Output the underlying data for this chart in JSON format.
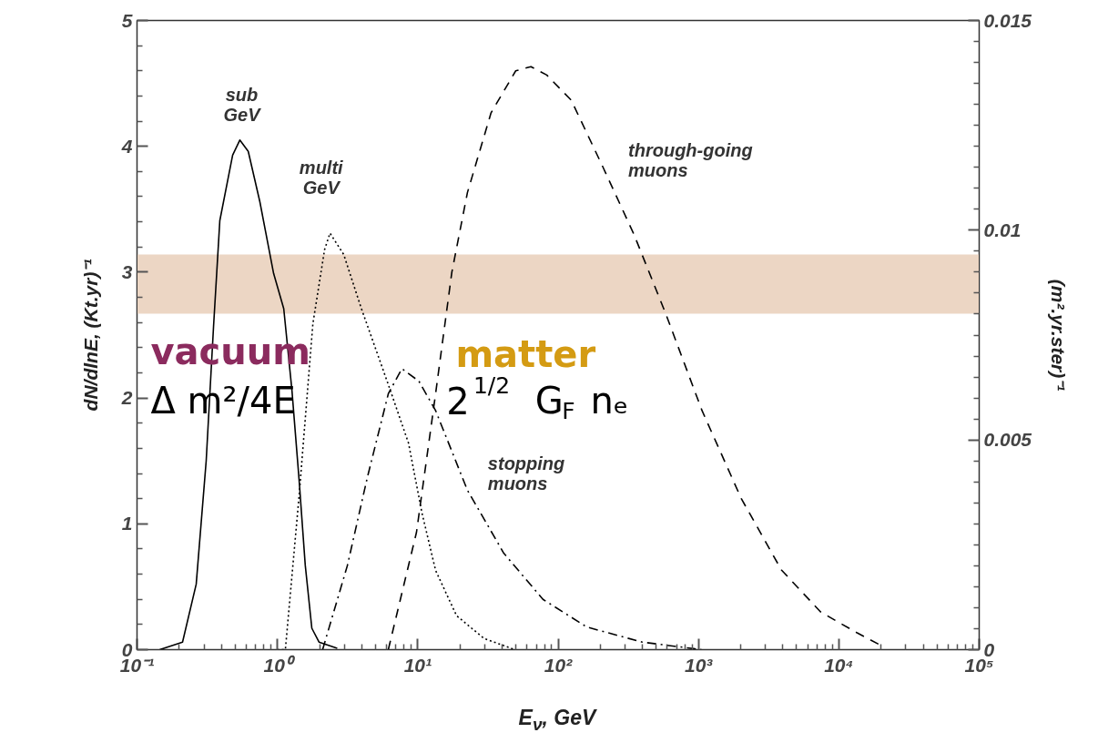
{
  "chart_data": {
    "type": "line",
    "xlabel": "E$_{ν}$, GeV",
    "ylabel": "dN/dlnE, (Kt.yr)⁻¹",
    "y2label": "(m².yr.ster)⁻¹",
    "log": "x",
    "xlim": [
      0.1,
      100000
    ],
    "xticks": [
      {
        "value": 0.1,
        "label": "10⁻¹"
      },
      {
        "value": 1,
        "label": "10⁰"
      },
      {
        "value": 10,
        "label": "10¹"
      },
      {
        "value": 100,
        "label": "10²"
      },
      {
        "value": 1000,
        "label": "10³"
      },
      {
        "value": 10000,
        "label": "10⁴"
      },
      {
        "value": 100000,
        "label": "10⁵"
      }
    ],
    "ylim": [
      0,
      5
    ],
    "yticks": [
      0,
      1,
      2,
      3,
      4,
      5
    ],
    "y2lim": [
      0,
      0.015
    ],
    "y2ticks": [
      0,
      0.005,
      0.01,
      0.015
    ],
    "grid": false,
    "series": [
      {
        "color": "#000000",
        "line_style": "solid",
        "x": [
          0.145,
          0.211,
          0.264,
          0.311,
          0.351,
          0.389,
          0.48,
          0.54,
          0.62,
          0.75,
          0.94,
          1.11,
          1.27,
          1.43,
          1.58,
          1.76,
          1.98,
          2.67
        ],
        "values": [
          0,
          0.06,
          0.52,
          1.5,
          2.57,
          3.41,
          3.93,
          4.05,
          3.96,
          3.56,
          2.99,
          2.71,
          2.06,
          1.34,
          0.67,
          0.17,
          0.06,
          0.01
        ]
      },
      {
        "color": "#000000",
        "line_style": "dotted",
        "x": [
          1.0,
          1.14,
          1.43,
          1.79,
          2.17,
          2.37,
          2.97,
          3.94,
          6.2,
          8.6,
          10.7,
          13.4,
          18.9,
          29.6,
          49
        ],
        "values": [
          0,
          0,
          1.23,
          2.59,
          3.18,
          3.31,
          3.14,
          2.72,
          2.1,
          1.64,
          1.09,
          0.63,
          0.27,
          0.09,
          0
        ]
      },
      {
        "color": "#000000",
        "line_style": "dashdot",
        "axis": "y2",
        "x": [
          2.1,
          3.15,
          4.37,
          6.17,
          7.71,
          10.2,
          13.4,
          22.6,
          41,
          78,
          160,
          397,
          1050
        ],
        "values": [
          0,
          0.002,
          0.0041,
          0.0061,
          0.0067,
          0.0064,
          0.0057,
          0.0038,
          0.0023,
          0.0012,
          0.00054,
          0.00018,
          0
        ]
      },
      {
        "color": "#000000",
        "line_style": "dashed",
        "axis": "y2",
        "x": [
          6.17,
          9.8,
          13.4,
          17.5,
          22.6,
          33.3,
          49.9,
          64,
          83,
          124,
          209,
          347,
          586,
          1060,
          2020,
          3900,
          7410,
          13500,
          20000
        ],
        "values": [
          0,
          0.0028,
          0.0061,
          0.009,
          0.0109,
          0.0128,
          0.0138,
          0.0139,
          0.0137,
          0.0131,
          0.0115,
          0.0099,
          0.008,
          0.0057,
          0.0036,
          0.0019,
          0.0009,
          0.0004,
          0.0001
        ]
      }
    ],
    "bands": [
      {
        "axis": "y",
        "from": 2.67,
        "to": 3.14,
        "color": "#ecd6c4"
      }
    ],
    "annotations": [
      "sub\nGeV",
      "multi\nGeV",
      "through-going\nmuons",
      "stopping\nmuons",
      "vacuum",
      "Δ m²/4E",
      "matter",
      "2$^{1/2}$ G$_{F}$ nₑ"
    ]
  }
}
